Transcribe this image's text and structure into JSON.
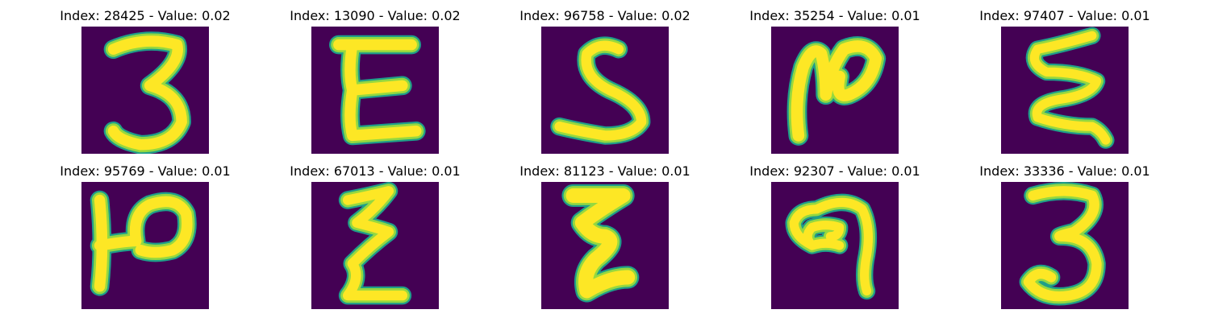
{
  "colors": {
    "background": "#440154",
    "stroke_core": "#fde725",
    "stroke_mid": "#95d840",
    "stroke_edge": "#1f9e89"
  },
  "panels": [
    {
      "title": "Index: 28425 - Value: 0.02",
      "glyph": "digit-3-shape"
    },
    {
      "title": "Index: 13090 - Value: 0.02",
      "glyph": "epsilon-shape"
    },
    {
      "title": "Index: 96758 - Value: 0.02",
      "glyph": "s-shape"
    },
    {
      "title": "Index: 35254 - Value: 0.01",
      "glyph": "n-loop-shape"
    },
    {
      "title": "Index: 97407 - Value: 0.01",
      "glyph": "triple-wave-shape"
    },
    {
      "title": "Index: 95769 - Value: 0.01",
      "glyph": "p-hook-shape"
    },
    {
      "title": "Index: 67013 - Value: 0.01",
      "glyph": "zigzag-shape"
    },
    {
      "title": "Index: 81123 - Value: 0.01",
      "glyph": "zigzag-bold-shape"
    },
    {
      "title": "Index: 92307 - Value: 0.01",
      "glyph": "loop-nine-shape"
    },
    {
      "title": "Index: 33336 - Value: 0.01",
      "glyph": "digit-3-shape"
    }
  ]
}
